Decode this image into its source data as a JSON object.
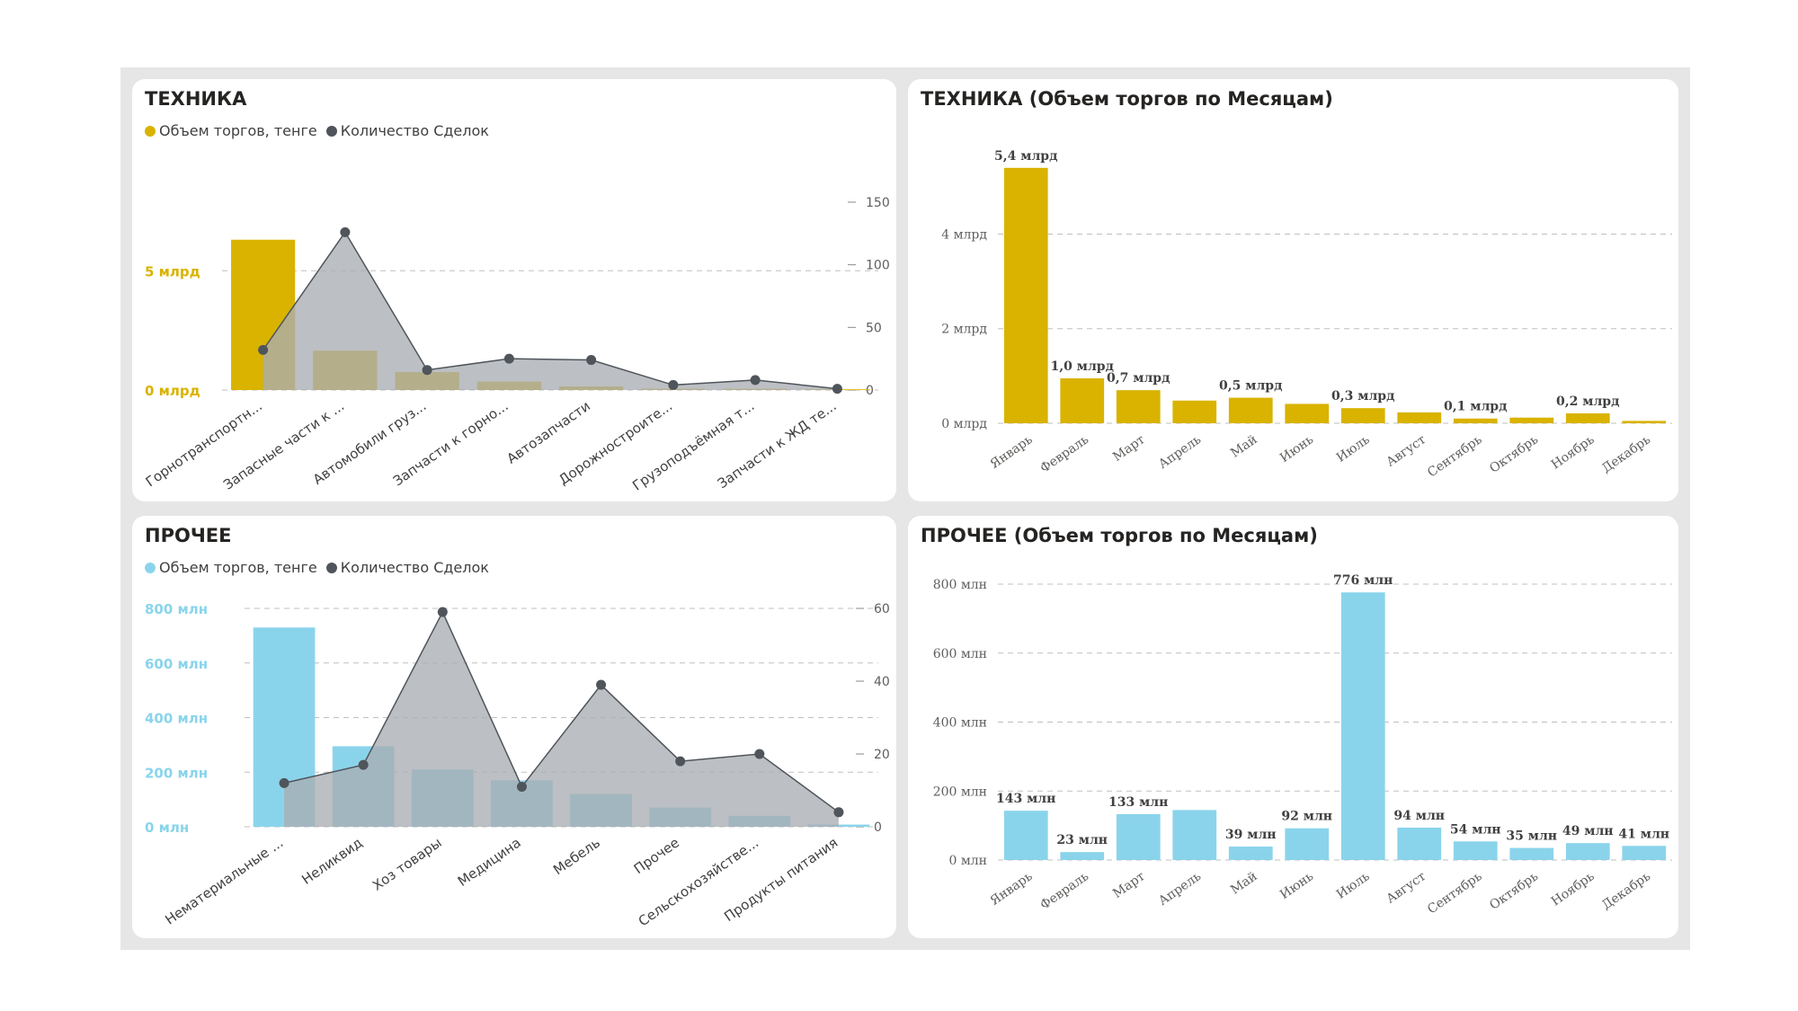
{
  "colors": {
    "tech": "#d9b300",
    "other": "#8ad4eb",
    "area": "#a9adb2",
    "line": "#4f555b",
    "grid": "#bfbfbf",
    "axis_text": "#605e5c",
    "label_dark": "#404040"
  },
  "tech_combo": {
    "title": "ТЕХНИКА",
    "legend": {
      "volume": "Объем торгов, тенге",
      "count": "Количество Сделок"
    }
  },
  "tech_month": {
    "title": "ТЕХНИКА (Объем торгов по Месяцам)"
  },
  "other_combo": {
    "title": "ПРОЧЕЕ",
    "legend": {
      "volume": "Объем торгов, тенге",
      "count": "Количество Сделок"
    }
  },
  "other_month": {
    "title": "ПРОЧЕЕ (Объем торгов по Месяцам)"
  },
  "chart_data": [
    {
      "id": "tech_combo",
      "type": "bar+area",
      "title": "ТЕХНИКА",
      "categories": [
        "Горнотранспортн...",
        "Запасные части к ...",
        "Автомобили груз...",
        "Запчасти к горно...",
        "Автозапчасти",
        "Дорожностроите...",
        "Грузоподъёмная т...",
        "Запчасти к ЖД те..."
      ],
      "series": [
        {
          "name": "Объем торгов, тенге",
          "axis": "left",
          "unit": "млрд",
          "values": [
            6.3,
            1.65,
            0.75,
            0.35,
            0.15,
            0.05,
            0.05,
            0.03
          ]
        },
        {
          "name": "Количество Сделок",
          "axis": "right",
          "values": [
            32,
            126,
            16,
            25,
            24,
            4,
            8,
            1
          ]
        }
      ],
      "y_left": {
        "ticks": [
          0,
          5
        ],
        "tick_labels": [
          "0 млрд",
          "5 млрд"
        ],
        "max": 8.4
      },
      "y_right": {
        "ticks": [
          0,
          50,
          100,
          150
        ],
        "max": 160
      }
    },
    {
      "id": "tech_month",
      "type": "bar",
      "title": "ТЕХНИКА (Объем торгов по Месяцам)",
      "categories": [
        "Январь",
        "Февраль",
        "Март",
        "Апрель",
        "Май",
        "Июнь",
        "Июль",
        "Август",
        "Сентябрь",
        "Октябрь",
        "Ноябрь",
        "Декабрь"
      ],
      "values": [
        5.4,
        0.95,
        0.7,
        0.48,
        0.54,
        0.41,
        0.32,
        0.23,
        0.1,
        0.12,
        0.21,
        0.05
      ],
      "data_labels": [
        "5,4 млрд",
        "1,0 млрд",
        "0,7 млрд",
        "",
        "0,5 млрд",
        "",
        "0,3 млрд",
        "",
        "0,1 млрд",
        "",
        "0,2 млрд",
        ""
      ],
      "y_ticks": [
        0,
        2,
        4
      ],
      "y_tick_labels": [
        "0 млрд",
        "2 млрд",
        "4 млрд"
      ],
      "ylim": [
        0,
        5.7
      ]
    },
    {
      "id": "other_combo",
      "type": "bar+area",
      "title": "ПРОЧЕЕ",
      "categories": [
        "Нематериальные ...",
        "Неликвид",
        "Хоз товары",
        "Медицина",
        "Мебель",
        "Прочее",
        "Сельскохозяйстве...",
        "Продукты питания"
      ],
      "series": [
        {
          "name": "Объем торгов, тенге",
          "axis": "left",
          "unit": "млн",
          "values": [
            730,
            295,
            210,
            170,
            120,
            70,
            40,
            8
          ]
        },
        {
          "name": "Количество Сделок",
          "axis": "right",
          "values": [
            12,
            17,
            59,
            11,
            39,
            18,
            20,
            4
          ]
        }
      ],
      "y_left": {
        "ticks": [
          0,
          200,
          400,
          600,
          800
        ],
        "tick_labels": [
          "0 млн",
          "200 млн",
          "400 млн",
          "600 млн",
          "800 млн"
        ],
        "max": 800
      },
      "y_right": {
        "ticks": [
          0,
          20,
          40,
          60
        ],
        "max": 60
      }
    },
    {
      "id": "other_month",
      "type": "bar",
      "title": "ПРОЧЕЕ (Объем торгов по Месяцам)",
      "categories": [
        "Январь",
        "Февраль",
        "Март",
        "Апрель",
        "Май",
        "Июнь",
        "Июль",
        "Август",
        "Сентябрь",
        "Октябрь",
        "Ноябрь",
        "Декабрь"
      ],
      "values": [
        143,
        23,
        133,
        145,
        39,
        92,
        776,
        94,
        54,
        35,
        49,
        41
      ],
      "data_labels": [
        "143 млн",
        "23 млн",
        "133 млн",
        "",
        "39 млн",
        "92 млн",
        "776 млн",
        "94 млн",
        "54 млн",
        "35 млн",
        "49 млн",
        "41 млн"
      ],
      "y_ticks": [
        0,
        200,
        400,
        600,
        800
      ],
      "y_tick_labels": [
        "0 млн",
        "200 млн",
        "400 млн",
        "600 млн",
        "800 млн"
      ],
      "ylim": [
        0,
        800
      ]
    }
  ]
}
